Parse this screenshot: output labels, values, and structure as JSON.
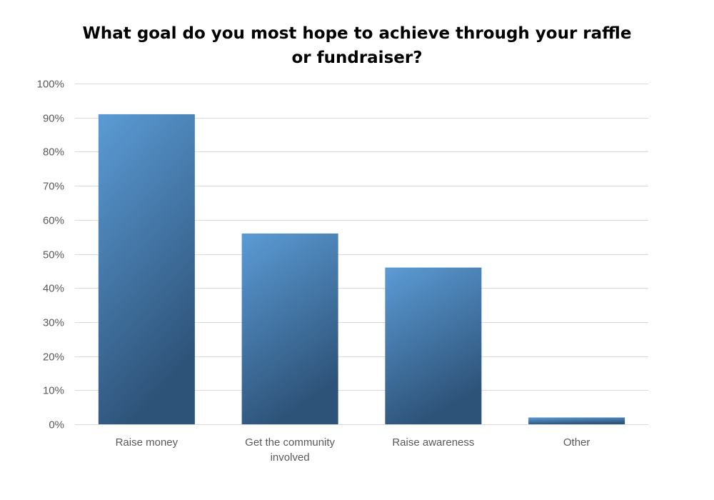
{
  "chart_data": {
    "type": "bar",
    "title_lines": [
      "What goal do you most hope to achieve through your raffle",
      "or fundraiser?"
    ],
    "categories": [
      [
        "Raise money"
      ],
      [
        "Get the community",
        "involved"
      ],
      [
        "Raise awareness"
      ],
      [
        "Other"
      ]
    ],
    "values": [
      91,
      56,
      46,
      2
    ],
    "ylim": [
      0,
      100
    ],
    "yticks": [
      0,
      10,
      20,
      30,
      40,
      50,
      60,
      70,
      80,
      90,
      100
    ],
    "ytick_labels": [
      "0%",
      "10%",
      "20%",
      "30%",
      "40%",
      "50%",
      "60%",
      "70%",
      "80%",
      "90%",
      "100%"
    ],
    "grid": true,
    "legend": "none",
    "colors": {
      "bar_top": "#5B9BD5",
      "bar_bottom": "#2E5379",
      "grid": "#D9D9D9",
      "text": "#595959"
    }
  }
}
